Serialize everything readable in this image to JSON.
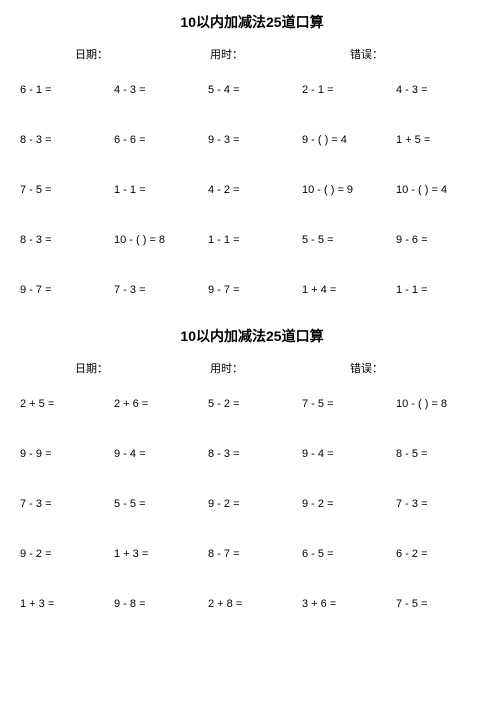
{
  "worksheets": [
    {
      "title": "10以内加减法25道口算",
      "meta": {
        "date_label": "日期：",
        "time_label": "用时：",
        "error_label": "错误："
      },
      "problems": [
        "6 - 1 =",
        "4 - 3 =",
        "5 - 4 =",
        "2 - 1 =",
        "4 - 3 =",
        "8 - 3 =",
        "6 - 6 =",
        "9 - 3 =",
        "9 - (    ) = 4",
        "1 + 5 =",
        "7 - 5 =",
        "1 - 1 =",
        "4 - 2 =",
        "10 - (    ) = 9",
        "10 - (    ) = 4",
        "8 - 3 =",
        "10 - (    ) = 8",
        "1 - 1 =",
        "5 - 5 =",
        "9 - 6 =",
        "9 - 7 =",
        "7 - 3 =",
        "9 - 7 =",
        "1 + 4 =",
        "1 - 1 ="
      ]
    },
    {
      "title": "10以内加减法25道口算",
      "meta": {
        "date_label": "日期：",
        "time_label": "用时：",
        "error_label": "错误："
      },
      "problems": [
        "2 + 5 =",
        "2 + 6 =",
        "5 - 2 =",
        "7 - 5 =",
        "10 - (    ) = 8",
        "9 - 9 =",
        "9 - 4 =",
        "8 - 3 =",
        "9 - 4 =",
        "8 - 5 =",
        "7 - 3 =",
        "5 - 5 =",
        "9 - 2 =",
        "9 - 2 =",
        "7 - 3 =",
        "9 - 2 =",
        "1 + 3 =",
        "8 - 7 =",
        "6 - 5 =",
        "6 - 2 =",
        "1 + 3 =",
        "9 - 8 =",
        "2 + 8 =",
        "3 + 6 =",
        "7 - 5 ="
      ]
    }
  ]
}
